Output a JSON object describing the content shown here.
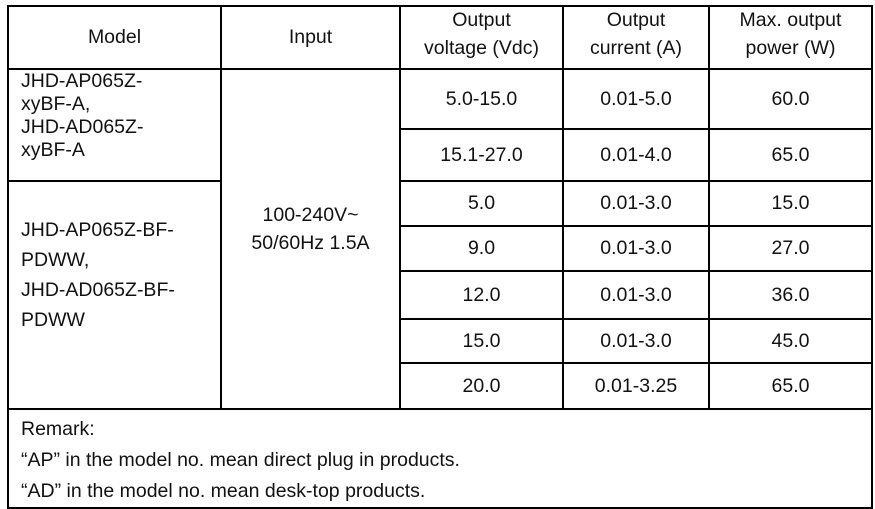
{
  "headers": {
    "model": "Model",
    "input": "Input",
    "voltage": [
      "Output",
      "voltage (Vdc)"
    ],
    "current": [
      "Output",
      "current (A)"
    ],
    "power": [
      "Max. output",
      "power (W)"
    ]
  },
  "input_value": [
    "100-240V~",
    "50/60Hz 1.5A"
  ],
  "groups": [
    {
      "model": [
        "JHD-AP065Z-",
        "xyBF-A,",
        "JHD-AD065Z-",
        "xyBF-A"
      ]
    },
    {
      "model": [
        "JHD-AP065Z-BF-",
        "PDWW,",
        "JHD-AD065Z-BF-",
        "PDWW"
      ]
    }
  ],
  "rows": [
    {
      "voltage": "5.0-15.0",
      "current": "0.01-5.0",
      "power": "60.0"
    },
    {
      "voltage": "15.1-27.0",
      "current": "0.01-4.0",
      "power": "65.0"
    },
    {
      "voltage": "5.0",
      "current": "0.01-3.0",
      "power": "15.0"
    },
    {
      "voltage": "9.0",
      "current": "0.01-3.0",
      "power": "27.0"
    },
    {
      "voltage": "12.0",
      "current": "0.01-3.0",
      "power": "36.0"
    },
    {
      "voltage": "15.0",
      "current": "0.01-3.0",
      "power": "45.0"
    },
    {
      "voltage": "20.0",
      "current": "0.01-3.25",
      "power": "65.0"
    }
  ],
  "remark": [
    "Remark:",
    "“AP” in the model no. mean direct plug in products.",
    "“AD” in the model no. mean desk-top products."
  ]
}
